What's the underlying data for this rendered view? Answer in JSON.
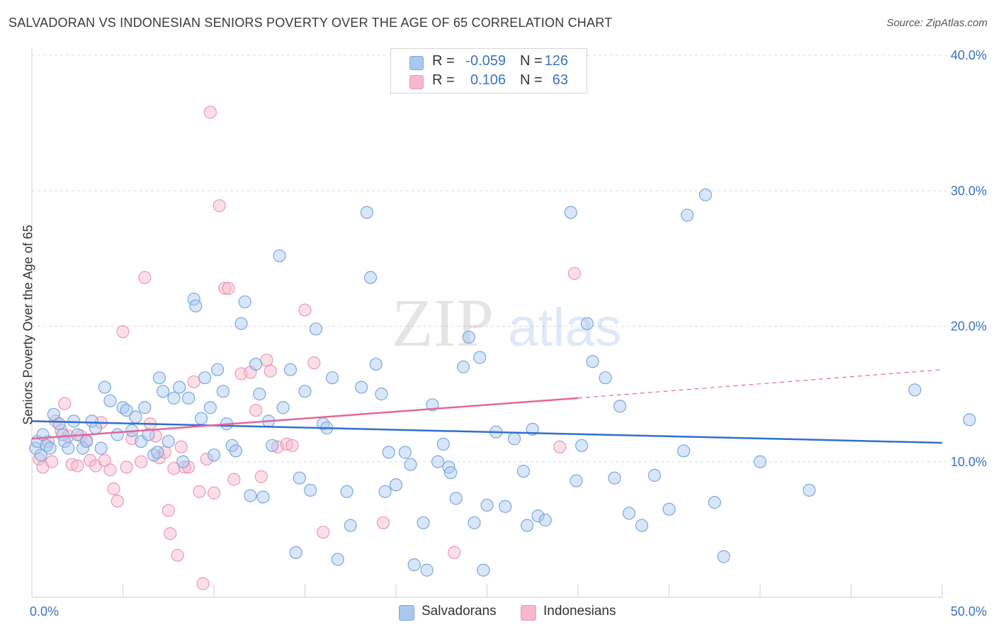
{
  "title": "SALVADORAN VS INDONESIAN SENIORS POVERTY OVER THE AGE OF 65 CORRELATION CHART",
  "source": "Source: ZipAtlas.com",
  "watermark": {
    "zip": "ZIP",
    "atlas": "atlas"
  },
  "legend": {
    "rows": [
      {
        "r_label": "R =",
        "r_value": "-0.059",
        "n_label": "N =",
        "n_value": "126",
        "color": "#a9c8f0"
      },
      {
        "r_label": "R =",
        "r_value": "0.106",
        "n_label": "N =",
        "n_value": "63",
        "color": "#f6b8ca"
      }
    ]
  },
  "bottom_legend": {
    "salvadorans": "Salvadorans",
    "indonesians": "Indonesians"
  },
  "colors": {
    "blue": "#a9c8f0",
    "blue_stroke": "#7aa7de",
    "blue_line": "#2f6fd0",
    "pink": "#f6b8ca",
    "pink_stroke": "#ee97b3",
    "pink_line": "#e3679a",
    "tick_text": "#3b73c8"
  },
  "chart_data": {
    "type": "scatter",
    "title": "SALVADORAN VS INDONESIAN SENIORS POVERTY OVER THE AGE OF 65 CORRELATION CHART",
    "xlabel": "",
    "ylabel": "Seniors Poverty Over the Age of 65",
    "xlim": [
      0,
      50
    ],
    "ylim": [
      0,
      40
    ],
    "x_tick_labels": [
      "0.0%",
      "50.0%"
    ],
    "y_ticks": [
      10,
      20,
      30,
      40
    ],
    "y_tick_labels": [
      "10.0%",
      "20.0%",
      "30.0%",
      "40.0%"
    ],
    "grid": true,
    "series": [
      {
        "name": "Salvadorans",
        "trend": {
          "x": [
            0,
            50
          ],
          "y": [
            13.0,
            11.4
          ]
        },
        "points": [
          [
            0.2,
            11.0
          ],
          [
            0.3,
            11.5
          ],
          [
            0.5,
            10.5
          ],
          [
            0.6,
            12.0
          ],
          [
            0.8,
            11.2
          ],
          [
            1.0,
            11.0
          ],
          [
            1.2,
            13.5
          ],
          [
            1.5,
            12.8
          ],
          [
            1.7,
            12.0
          ],
          [
            1.8,
            11.5
          ],
          [
            2.0,
            11.0
          ],
          [
            2.3,
            13.0
          ],
          [
            2.5,
            12.0
          ],
          [
            2.8,
            11.0
          ],
          [
            3.0,
            11.5
          ],
          [
            3.3,
            13.0
          ],
          [
            3.5,
            12.5
          ],
          [
            3.8,
            11.0
          ],
          [
            4.0,
            15.5
          ],
          [
            4.3,
            14.5
          ],
          [
            4.7,
            12.0
          ],
          [
            5.0,
            14.0
          ],
          [
            5.2,
            13.8
          ],
          [
            5.5,
            12.3
          ],
          [
            5.7,
            13.3
          ],
          [
            6.0,
            11.5
          ],
          [
            6.2,
            14.0
          ],
          [
            6.4,
            12.0
          ],
          [
            6.7,
            10.5
          ],
          [
            6.9,
            10.7
          ],
          [
            7.0,
            16.2
          ],
          [
            7.2,
            15.2
          ],
          [
            7.5,
            11.5
          ],
          [
            7.8,
            14.7
          ],
          [
            8.1,
            15.5
          ],
          [
            8.3,
            10.0
          ],
          [
            8.6,
            14.7
          ],
          [
            8.9,
            22.0
          ],
          [
            9.0,
            21.5
          ],
          [
            9.3,
            13.2
          ],
          [
            9.5,
            16.2
          ],
          [
            9.8,
            14.0
          ],
          [
            10.0,
            10.5
          ],
          [
            10.2,
            16.8
          ],
          [
            10.5,
            15.2
          ],
          [
            10.7,
            12.8
          ],
          [
            11.0,
            11.2
          ],
          [
            11.2,
            10.8
          ],
          [
            11.5,
            20.2
          ],
          [
            11.7,
            21.8
          ],
          [
            12.0,
            7.5
          ],
          [
            12.3,
            17.2
          ],
          [
            12.5,
            15.0
          ],
          [
            12.7,
            7.4
          ],
          [
            13.0,
            13.0
          ],
          [
            13.2,
            11.2
          ],
          [
            13.6,
            25.2
          ],
          [
            13.8,
            14.0
          ],
          [
            14.2,
            16.8
          ],
          [
            14.5,
            3.3
          ],
          [
            14.7,
            8.8
          ],
          [
            15.0,
            15.2
          ],
          [
            15.3,
            7.9
          ],
          [
            15.6,
            19.8
          ],
          [
            16.0,
            12.8
          ],
          [
            16.2,
            12.5
          ],
          [
            16.5,
            16.2
          ],
          [
            16.8,
            2.8
          ],
          [
            17.3,
            7.8
          ],
          [
            17.5,
            5.3
          ],
          [
            18.1,
            15.5
          ],
          [
            18.4,
            28.4
          ],
          [
            18.6,
            23.6
          ],
          [
            18.9,
            17.2
          ],
          [
            19.2,
            15.0
          ],
          [
            19.4,
            7.8
          ],
          [
            19.6,
            10.7
          ],
          [
            20.0,
            8.3
          ],
          [
            20.5,
            10.7
          ],
          [
            20.8,
            9.8
          ],
          [
            21.0,
            2.4
          ],
          [
            21.5,
            5.5
          ],
          [
            21.7,
            2.0
          ],
          [
            22.0,
            14.2
          ],
          [
            22.3,
            10.0
          ],
          [
            22.6,
            11.3
          ],
          [
            22.9,
            9.6
          ],
          [
            23.0,
            9.2
          ],
          [
            23.3,
            7.3
          ],
          [
            23.7,
            17.0
          ],
          [
            24.0,
            19.2
          ],
          [
            24.3,
            5.5
          ],
          [
            24.6,
            17.7
          ],
          [
            24.8,
            2.0
          ],
          [
            25.0,
            6.8
          ],
          [
            25.5,
            12.2
          ],
          [
            26.0,
            6.7
          ],
          [
            26.5,
            11.7
          ],
          [
            27.0,
            9.3
          ],
          [
            27.2,
            5.3
          ],
          [
            27.5,
            12.4
          ],
          [
            27.8,
            6.0
          ],
          [
            28.2,
            5.7
          ],
          [
            29.6,
            28.4
          ],
          [
            29.9,
            8.6
          ],
          [
            30.2,
            11.2
          ],
          [
            30.5,
            20.2
          ],
          [
            30.8,
            17.4
          ],
          [
            31.5,
            16.2
          ],
          [
            32.0,
            8.8
          ],
          [
            32.3,
            14.1
          ],
          [
            32.8,
            6.2
          ],
          [
            33.5,
            5.3
          ],
          [
            34.2,
            9.0
          ],
          [
            35.0,
            6.5
          ],
          [
            35.8,
            10.8
          ],
          [
            36.0,
            28.2
          ],
          [
            37.0,
            29.7
          ],
          [
            37.5,
            7.0
          ],
          [
            38.0,
            3.0
          ],
          [
            40.0,
            10.0
          ],
          [
            42.7,
            7.9
          ],
          [
            48.5,
            15.3
          ],
          [
            51.5,
            13.1
          ]
        ]
      },
      {
        "name": "Indonesians",
        "trend": {
          "x": [
            0,
            30
          ],
          "y": [
            11.7,
            14.7
          ]
        },
        "trend_dashed": {
          "x": [
            30,
            50
          ],
          "y": [
            14.7,
            16.8
          ]
        },
        "points": [
          [
            0.4,
            10.2
          ],
          [
            0.6,
            9.6
          ],
          [
            0.9,
            11.5
          ],
          [
            1.1,
            10.0
          ],
          [
            1.3,
            13.0
          ],
          [
            1.6,
            12.3
          ],
          [
            1.8,
            14.3
          ],
          [
            2.0,
            11.9
          ],
          [
            2.2,
            9.8
          ],
          [
            2.5,
            9.7
          ],
          [
            2.7,
            11.9
          ],
          [
            3.0,
            11.6
          ],
          [
            3.2,
            10.1
          ],
          [
            3.5,
            9.7
          ],
          [
            3.8,
            12.9
          ],
          [
            4.0,
            10.1
          ],
          [
            4.3,
            9.4
          ],
          [
            4.5,
            8.0
          ],
          [
            4.7,
            7.1
          ],
          [
            5.0,
            19.6
          ],
          [
            5.2,
            9.6
          ],
          [
            5.5,
            11.7
          ],
          [
            6.0,
            10.0
          ],
          [
            6.2,
            23.6
          ],
          [
            6.5,
            12.8
          ],
          [
            6.8,
            11.9
          ],
          [
            7.0,
            10.3
          ],
          [
            7.3,
            10.7
          ],
          [
            7.5,
            6.4
          ],
          [
            7.6,
            4.7
          ],
          [
            7.8,
            9.5
          ],
          [
            8.0,
            3.1
          ],
          [
            8.2,
            11.1
          ],
          [
            8.4,
            9.6
          ],
          [
            8.6,
            9.6
          ],
          [
            8.9,
            15.9
          ],
          [
            9.2,
            7.8
          ],
          [
            9.4,
            1.0
          ],
          [
            9.6,
            10.2
          ],
          [
            9.8,
            35.8
          ],
          [
            10.0,
            7.7
          ],
          [
            10.3,
            28.9
          ],
          [
            10.6,
            22.8
          ],
          [
            10.8,
            22.8
          ],
          [
            11.1,
            8.7
          ],
          [
            11.5,
            16.5
          ],
          [
            12.0,
            16.6
          ],
          [
            12.3,
            13.8
          ],
          [
            12.6,
            8.9
          ],
          [
            12.9,
            17.5
          ],
          [
            13.1,
            16.7
          ],
          [
            13.5,
            11.1
          ],
          [
            14.0,
            11.3
          ],
          [
            14.3,
            11.2
          ],
          [
            15.0,
            21.2
          ],
          [
            15.5,
            17.3
          ],
          [
            16.0,
            4.8
          ],
          [
            19.3,
            5.5
          ],
          [
            23.2,
            3.3
          ],
          [
            29.0,
            11.1
          ],
          [
            29.8,
            23.9
          ]
        ]
      }
    ]
  }
}
